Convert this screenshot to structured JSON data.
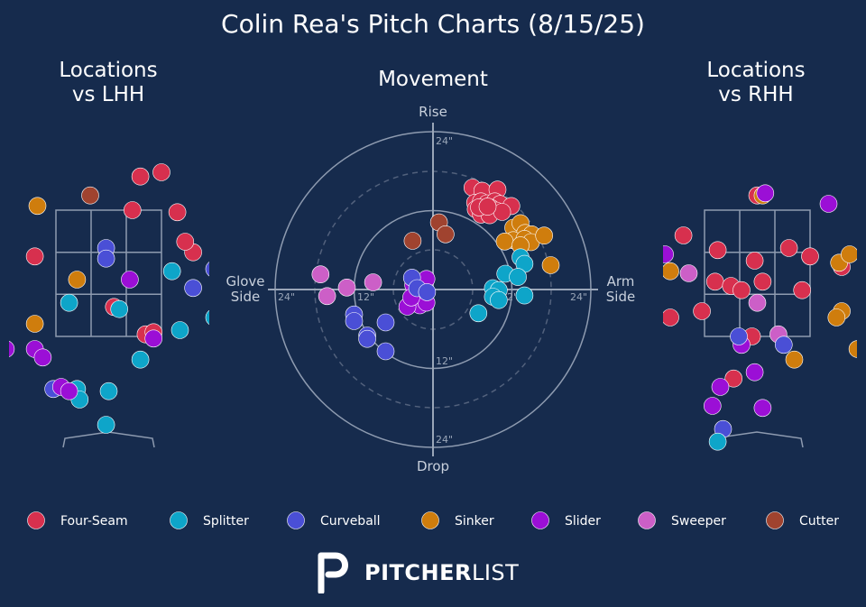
{
  "title": "Colin Rea's Pitch Charts (8/15/25)",
  "panels": {
    "lhh_title_line1": "Locations",
    "lhh_title_line2": "vs LHH",
    "movement_title": "Movement",
    "rhh_title_line1": "Locations",
    "rhh_title_line2": "vs RHH"
  },
  "movement_axes": {
    "rise": "Rise",
    "drop": "Drop",
    "glove_line1": "Glove",
    "glove_line2": "Side",
    "arm_line1": "Arm",
    "arm_line2": "Side",
    "ring_labels": [
      "24\"",
      "12\"",
      "12\"",
      "24\"",
      "24\"",
      "12\"",
      "24\""
    ]
  },
  "brand": {
    "name_bold": "PITCHER",
    "name_light": "LIST",
    "logo_icon": "pitcherlist-logo-icon"
  },
  "colors": {
    "Four-Seam": "#d7304e",
    "Splitter": "#0ea5c9",
    "Curveball": "#4a4fd6",
    "Sinker": "#cf7d0d",
    "Slider": "#9b0fd6",
    "Sweeper": "#cc5fc7",
    "Cutter": "#a0432f"
  },
  "chart_data": [
    {
      "type": "scatter",
      "title": "Locations vs LHH",
      "legend": [
        "Four-Seam",
        "Splitter",
        "Curveball",
        "Sinker",
        "Slider",
        "Sweeper",
        "Cutter"
      ],
      "legend_position": "bottom",
      "strike_zone": "3x3 grid with home plate",
      "points": [
        {
          "pitch": "Four-Seam",
          "x": 1.0,
          "y": 3.9
        },
        {
          "pitch": "Four-Seam",
          "x": 0.6,
          "y": 3.8
        },
        {
          "pitch": "Four-Seam",
          "x": 0.45,
          "y": 3.0
        },
        {
          "pitch": "Four-Seam",
          "x": 1.3,
          "y": 2.95
        },
        {
          "pitch": "Four-Seam",
          "x": 2.1,
          "y": 2.95
        },
        {
          "pitch": "Four-Seam",
          "x": -1.4,
          "y": 1.9
        },
        {
          "pitch": "Four-Seam",
          "x": 1.6,
          "y": 2.0
        },
        {
          "pitch": "Four-Seam",
          "x": 1.45,
          "y": 2.25
        },
        {
          "pitch": "Four-Seam",
          "x": 2.25,
          "y": 1.5
        },
        {
          "pitch": "Four-Seam",
          "x": 2.4,
          "y": 1.75
        },
        {
          "pitch": "Four-Seam",
          "x": 0.1,
          "y": 0.7
        },
        {
          "pitch": "Four-Seam",
          "x": 0.7,
          "y": 0.05
        },
        {
          "pitch": "Four-Seam",
          "x": 0.85,
          "y": 0.1
        },
        {
          "pitch": "Cutter",
          "x": -0.35,
          "y": 3.35
        },
        {
          "pitch": "Cutter",
          "x": -2.4,
          "y": 2.0
        },
        {
          "pitch": "Splitter",
          "x": 1.2,
          "y": 1.55
        },
        {
          "pitch": "Splitter",
          "x": -0.75,
          "y": 0.8
        },
        {
          "pitch": "Splitter",
          "x": 0.2,
          "y": 0.65
        },
        {
          "pitch": "Splitter",
          "x": 2.0,
          "y": 0.45
        },
        {
          "pitch": "Splitter",
          "x": 2.15,
          "y": 0.6
        },
        {
          "pitch": "Splitter",
          "x": 1.35,
          "y": 0.15
        },
        {
          "pitch": "Splitter",
          "x": 0.6,
          "y": -0.55
        },
        {
          "pitch": "Splitter",
          "x": -0.6,
          "y": -1.25
        },
        {
          "pitch": "Splitter",
          "x": -0.55,
          "y": -1.5
        },
        {
          "pitch": "Splitter",
          "x": 0.0,
          "y": -1.3
        },
        {
          "pitch": "Splitter",
          "x": -0.05,
          "y": -2.1
        },
        {
          "pitch": "Curveball",
          "x": -0.05,
          "y": 2.1
        },
        {
          "pitch": "Curveball",
          "x": -0.05,
          "y": 1.85
        },
        {
          "pitch": "Curveball",
          "x": 1.6,
          "y": 1.15
        },
        {
          "pitch": "Curveball",
          "x": 2.0,
          "y": 1.6
        },
        {
          "pitch": "Curveball",
          "x": -1.05,
          "y": -1.25
        },
        {
          "pitch": "Sinker",
          "x": -1.35,
          "y": 3.1
        },
        {
          "pitch": "Sinker",
          "x": -0.6,
          "y": 1.35
        },
        {
          "pitch": "Sinker",
          "x": -1.4,
          "y": 0.3
        },
        {
          "pitch": "Slider",
          "x": 0.4,
          "y": 1.35
        },
        {
          "pitch": "Slider",
          "x": -1.95,
          "y": -0.3
        },
        {
          "pitch": "Slider",
          "x": -1.4,
          "y": -0.3
        },
        {
          "pitch": "Slider",
          "x": -1.25,
          "y": -0.5
        },
        {
          "pitch": "Slider",
          "x": -0.9,
          "y": -1.2
        },
        {
          "pitch": "Slider",
          "x": 0.85,
          "y": -0.05
        },
        {
          "pitch": "Slider",
          "x": -0.75,
          "y": -1.3
        }
      ]
    },
    {
      "type": "scatter",
      "title": "Movement",
      "xlabel": "Glove Side / Arm Side",
      "ylabel": "Drop / Rise",
      "xlim": [
        -24,
        24
      ],
      "ylim": [
        -24,
        24
      ],
      "rings": [
        6,
        12,
        18,
        24
      ],
      "points": [
        {
          "pitch": "Four-Seam",
          "x": 6.0,
          "y": 15.5
        },
        {
          "pitch": "Four-Seam",
          "x": 7.5,
          "y": 15.0
        },
        {
          "pitch": "Four-Seam",
          "x": 9.8,
          "y": 15.2
        },
        {
          "pitch": "Four-Seam",
          "x": 6.4,
          "y": 13.2
        },
        {
          "pitch": "Four-Seam",
          "x": 7.3,
          "y": 13.4
        },
        {
          "pitch": "Four-Seam",
          "x": 8.2,
          "y": 13.1
        },
        {
          "pitch": "Four-Seam",
          "x": 9.4,
          "y": 13.4
        },
        {
          "pitch": "Four-Seam",
          "x": 10.2,
          "y": 13.0
        },
        {
          "pitch": "Four-Seam",
          "x": 11.9,
          "y": 12.7
        },
        {
          "pitch": "Four-Seam",
          "x": 6.5,
          "y": 12.2
        },
        {
          "pitch": "Four-Seam",
          "x": 7.8,
          "y": 12.1
        },
        {
          "pitch": "Four-Seam",
          "x": 8.8,
          "y": 12.4
        },
        {
          "pitch": "Four-Seam",
          "x": 9.6,
          "y": 12.0
        },
        {
          "pitch": "Four-Seam",
          "x": 7.3,
          "y": 11.4
        },
        {
          "pitch": "Four-Seam",
          "x": 8.6,
          "y": 11.3
        },
        {
          "pitch": "Four-Seam",
          "x": 10.5,
          "y": 11.8
        },
        {
          "pitch": "Four-Seam",
          "x": 7.0,
          "y": 12.5
        },
        {
          "pitch": "Four-Seam",
          "x": 8.3,
          "y": 12.6
        },
        {
          "pitch": "Sinker",
          "x": 12.2,
          "y": 9.4
        },
        {
          "pitch": "Sinker",
          "x": 13.3,
          "y": 10.1
        },
        {
          "pitch": "Sinker",
          "x": 14.0,
          "y": 8.6
        },
        {
          "pitch": "Sinker",
          "x": 15.0,
          "y": 8.4
        },
        {
          "pitch": "Sinker",
          "x": 12.2,
          "y": 7.5
        },
        {
          "pitch": "Sinker",
          "x": 13.9,
          "y": 7.7
        },
        {
          "pitch": "Sinker",
          "x": 10.9,
          "y": 7.3
        },
        {
          "pitch": "Sinker",
          "x": 14.9,
          "y": 7.2
        },
        {
          "pitch": "Sinker",
          "x": 13.3,
          "y": 6.7
        },
        {
          "pitch": "Sinker",
          "x": 16.9,
          "y": 8.2
        },
        {
          "pitch": "Sinker",
          "x": 17.9,
          "y": 3.7
        },
        {
          "pitch": "Splitter",
          "x": 13.3,
          "y": 4.9
        },
        {
          "pitch": "Splitter",
          "x": 13.9,
          "y": 3.9
        },
        {
          "pitch": "Splitter",
          "x": 11.0,
          "y": 2.4
        },
        {
          "pitch": "Splitter",
          "x": 12.9,
          "y": 1.9
        },
        {
          "pitch": "Splitter",
          "x": 9.1,
          "y": 0.2
        },
        {
          "pitch": "Splitter",
          "x": 10.0,
          "y": -0.1
        },
        {
          "pitch": "Splitter",
          "x": 9.1,
          "y": -1.1
        },
        {
          "pitch": "Splitter",
          "x": 10.0,
          "y": -1.6
        },
        {
          "pitch": "Splitter",
          "x": 13.9,
          "y": -0.9
        },
        {
          "pitch": "Splitter",
          "x": 6.9,
          "y": -3.6
        },
        {
          "pitch": "Cutter",
          "x": 0.9,
          "y": 10.2
        },
        {
          "pitch": "Cutter",
          "x": 1.9,
          "y": 8.4
        },
        {
          "pitch": "Cutter",
          "x": -3.1,
          "y": 7.4
        },
        {
          "pitch": "Slider",
          "x": -3.0,
          "y": 0.7
        },
        {
          "pitch": "Slider",
          "x": -1.0,
          "y": 1.6
        },
        {
          "pitch": "Slider",
          "x": -2.1,
          "y": -0.6
        },
        {
          "pitch": "Slider",
          "x": -1.3,
          "y": -1.2
        },
        {
          "pitch": "Slider",
          "x": -2.0,
          "y": -2.4
        },
        {
          "pitch": "Slider",
          "x": -3.9,
          "y": -2.6
        },
        {
          "pitch": "Slider",
          "x": -1.0,
          "y": -2.0
        },
        {
          "pitch": "Slider",
          "x": -3.3,
          "y": -1.2
        },
        {
          "pitch": "Curveball",
          "x": -3.2,
          "y": 1.8
        },
        {
          "pitch": "Curveball",
          "x": -2.4,
          "y": 0.2
        },
        {
          "pitch": "Curveball",
          "x": -0.9,
          "y": -0.4
        },
        {
          "pitch": "Curveball",
          "x": -7.2,
          "y": -5.0
        },
        {
          "pitch": "Curveball",
          "x": -12.0,
          "y": -3.8
        },
        {
          "pitch": "Curveball",
          "x": -12.0,
          "y": -4.8
        },
        {
          "pitch": "Curveball",
          "x": -10.0,
          "y": -7.0
        },
        {
          "pitch": "Curveball",
          "x": -10.0,
          "y": -7.5
        },
        {
          "pitch": "Curveball",
          "x": -7.2,
          "y": -9.4
        },
        {
          "pitch": "Sweeper",
          "x": -17.1,
          "y": 2.3
        },
        {
          "pitch": "Sweeper",
          "x": -13.1,
          "y": 0.3
        },
        {
          "pitch": "Sweeper",
          "x": -9.1,
          "y": 1.1
        },
        {
          "pitch": "Sweeper",
          "x": -16.1,
          "y": -1.0
        }
      ]
    },
    {
      "type": "scatter",
      "title": "Locations vs RHH",
      "strike_zone": "3x3 grid with home plate",
      "points": [
        {
          "pitch": "Four-Seam",
          "x": 2.4,
          "y": 4.2
        },
        {
          "pitch": "Four-Seam",
          "x": 0.0,
          "y": 3.35
        },
        {
          "pitch": "Four-Seam",
          "x": -1.4,
          "y": 2.4
        },
        {
          "pitch": "Four-Seam",
          "x": -0.75,
          "y": 2.05
        },
        {
          "pitch": "Four-Seam",
          "x": -0.05,
          "y": 1.8
        },
        {
          "pitch": "Four-Seam",
          "x": 0.6,
          "y": 2.1
        },
        {
          "pitch": "Four-Seam",
          "x": 1.0,
          "y": 1.9
        },
        {
          "pitch": "Four-Seam",
          "x": -0.8,
          "y": 1.3
        },
        {
          "pitch": "Four-Seam",
          "x": -0.5,
          "y": 1.2
        },
        {
          "pitch": "Four-Seam",
          "x": -0.3,
          "y": 1.1
        },
        {
          "pitch": "Four-Seam",
          "x": 0.1,
          "y": 1.3
        },
        {
          "pitch": "Four-Seam",
          "x": 0.85,
          "y": 1.1
        },
        {
          "pitch": "Four-Seam",
          "x": -1.65,
          "y": 0.45
        },
        {
          "pitch": "Four-Seam",
          "x": -1.05,
          "y": 0.6
        },
        {
          "pitch": "Four-Seam",
          "x": -0.1,
          "y": 0.0
        },
        {
          "pitch": "Four-Seam",
          "x": 2.1,
          "y": 1.9
        },
        {
          "pitch": "Four-Seam",
          "x": 1.6,
          "y": 1.65
        },
        {
          "pitch": "Four-Seam",
          "x": -0.45,
          "y": -1.0
        },
        {
          "pitch": "Sinker",
          "x": 0.1,
          "y": 3.35
        },
        {
          "pitch": "Sinker",
          "x": -1.65,
          "y": 1.55
        },
        {
          "pitch": "Sinker",
          "x": 1.55,
          "y": 1.75
        },
        {
          "pitch": "Sinker",
          "x": 1.75,
          "y": 1.95
        },
        {
          "pitch": "Sinker",
          "x": 1.6,
          "y": 0.6
        },
        {
          "pitch": "Sinker",
          "x": 1.5,
          "y": 0.45
        },
        {
          "pitch": "Sinker",
          "x": 2.4,
          "y": 0.4
        },
        {
          "pitch": "Sinker",
          "x": 0.7,
          "y": -0.55
        },
        {
          "pitch": "Sinker",
          "x": 1.9,
          "y": -0.3
        },
        {
          "pitch": "Slider",
          "x": 0.15,
          "y": 3.4
        },
        {
          "pitch": "Slider",
          "x": 1.35,
          "y": 3.15
        },
        {
          "pitch": "Slider",
          "x": -1.75,
          "y": 1.95
        },
        {
          "pitch": "Slider",
          "x": 2.35,
          "y": 0.75
        },
        {
          "pitch": "Slider",
          "x": -0.05,
          "y": -0.85
        },
        {
          "pitch": "Slider",
          "x": -2.5,
          "y": -1.3
        },
        {
          "pitch": "Slider",
          "x": -0.7,
          "y": -1.2
        },
        {
          "pitch": "Slider",
          "x": 0.1,
          "y": -1.7
        },
        {
          "pitch": "Slider",
          "x": -0.85,
          "y": -1.65
        },
        {
          "pitch": "Slider",
          "x": -0.3,
          "y": -0.2
        },
        {
          "pitch": "Sweeper",
          "x": -1.3,
          "y": 1.5
        },
        {
          "pitch": "Sweeper",
          "x": 0.0,
          "y": 0.8
        },
        {
          "pitch": "Sweeper",
          "x": 0.4,
          "y": 0.05
        },
        {
          "pitch": "Curveball",
          "x": -0.35,
          "y": 0.0
        },
        {
          "pitch": "Curveball",
          "x": 0.5,
          "y": -0.2
        },
        {
          "pitch": "Curveball",
          "x": -0.65,
          "y": -2.2
        },
        {
          "pitch": "Splitter",
          "x": -0.75,
          "y": -2.5
        },
        {
          "pitch": "Cutter",
          "x": 2.8,
          "y": 1.45
        }
      ]
    }
  ]
}
